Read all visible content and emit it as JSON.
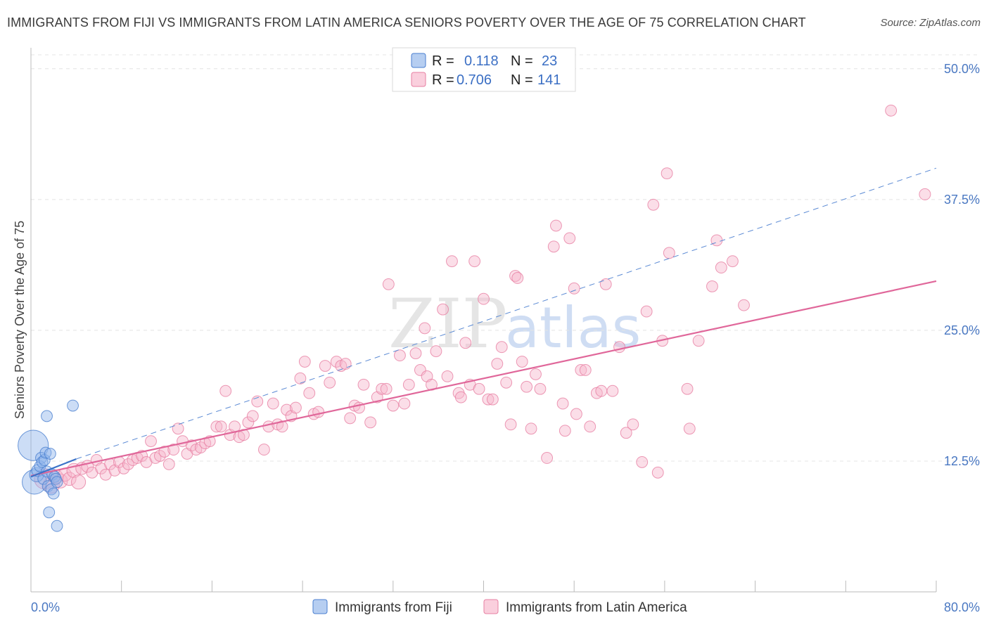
{
  "chart_data": {
    "type": "scatter",
    "title": "IMMIGRANTS FROM FIJI VS IMMIGRANTS FROM LATIN AMERICA SENIORS POVERTY OVER THE AGE OF 75 CORRELATION CHART",
    "source": "Source: ZipAtlas.com",
    "ylabel": "Seniors Poverty Over the Age of 75",
    "xlim": [
      0,
      80
    ],
    "ylim": [
      0,
      52
    ],
    "x_tick_labels": [
      "0.0%",
      "80.0%"
    ],
    "y_ticks": [
      {
        "value": 12.5,
        "label": "12.5%"
      },
      {
        "value": 25.0,
        "label": "25.0%"
      },
      {
        "value": 37.5,
        "label": "37.5%"
      },
      {
        "value": 50.0,
        "label": "50.0%"
      }
    ],
    "watermark": {
      "part1": "ZIP",
      "part2": "atlas"
    },
    "legend": {
      "r_label": "R =",
      "n_label": "N =",
      "entries": [
        {
          "r": "0.118",
          "n": "23"
        },
        {
          "r": "0.706",
          "n": "141"
        }
      ]
    },
    "series": [
      {
        "name": "Immigrants from Fiji",
        "color": "#8fb4ea",
        "stroke": "#4a7fd0",
        "trend": {
          "x": [
            0,
            4
          ],
          "y": [
            11.0,
            12.7
          ],
          "color": "#3a72c8"
        },
        "points": [
          [
            0.2,
            14.0
          ],
          [
            0.3,
            10.5
          ],
          [
            0.5,
            11.2
          ],
          [
            0.6,
            11.6
          ],
          [
            0.8,
            12.0
          ],
          [
            0.9,
            12.8
          ],
          [
            1.0,
            12.4
          ],
          [
            1.1,
            10.8
          ],
          [
            1.2,
            12.6
          ],
          [
            1.3,
            13.3
          ],
          [
            1.4,
            11.5
          ],
          [
            1.5,
            10.1
          ],
          [
            1.6,
            7.6
          ],
          [
            1.7,
            13.2
          ],
          [
            1.8,
            9.8
          ],
          [
            1.9,
            11.2
          ],
          [
            2.0,
            9.4
          ],
          [
            2.1,
            11.0
          ],
          [
            2.2,
            10.8
          ],
          [
            2.3,
            10.5
          ],
          [
            1.4,
            16.8
          ],
          [
            2.3,
            6.3
          ],
          [
            3.7,
            17.8
          ]
        ],
        "sizes": [
          30,
          24,
          14,
          12,
          11,
          11,
          11,
          11,
          11,
          11,
          11,
          11,
          11,
          11,
          11,
          11,
          11,
          11,
          11,
          11,
          11,
          11,
          11
        ]
      },
      {
        "name": "Immigrants from Latin America",
        "color": "#f7b6cb",
        "stroke": "#e77fa2",
        "trend": {
          "x": [
            0,
            80
          ],
          "y": [
            11.1,
            29.7
          ],
          "color": "#e0679a"
        },
        "dashed": {
          "x": [
            4,
            80
          ],
          "y": [
            12.7,
            40.5
          ],
          "color": "#5b8ad4"
        },
        "points": [
          [
            1.2,
            10.8
          ],
          [
            1.8,
            10.2
          ],
          [
            2.2,
            11.0
          ],
          [
            2.6,
            10.6
          ],
          [
            3.0,
            11.2
          ],
          [
            3.4,
            10.8
          ],
          [
            3.8,
            11.6
          ],
          [
            4.2,
            10.5
          ],
          [
            4.5,
            11.8
          ],
          [
            5.0,
            12.0
          ],
          [
            5.4,
            11.4
          ],
          [
            5.8,
            12.6
          ],
          [
            6.2,
            11.8
          ],
          [
            6.6,
            11.2
          ],
          [
            7.0,
            12.2
          ],
          [
            7.4,
            11.6
          ],
          [
            7.8,
            12.4
          ],
          [
            8.2,
            11.8
          ],
          [
            8.6,
            12.2
          ],
          [
            9.0,
            12.6
          ],
          [
            9.4,
            12.8
          ],
          [
            9.8,
            13.0
          ],
          [
            10.2,
            12.4
          ],
          [
            10.6,
            14.4
          ],
          [
            11.0,
            12.8
          ],
          [
            11.4,
            13.0
          ],
          [
            11.8,
            13.4
          ],
          [
            12.2,
            12.2
          ],
          [
            12.6,
            13.6
          ],
          [
            13.0,
            15.6
          ],
          [
            13.4,
            14.4
          ],
          [
            13.8,
            13.2
          ],
          [
            14.2,
            14.0
          ],
          [
            14.6,
            13.6
          ],
          [
            15.0,
            13.8
          ],
          [
            15.4,
            14.2
          ],
          [
            15.8,
            14.4
          ],
          [
            16.4,
            15.8
          ],
          [
            16.8,
            15.8
          ],
          [
            17.2,
            19.2
          ],
          [
            17.6,
            15.0
          ],
          [
            18.0,
            15.8
          ],
          [
            18.4,
            14.8
          ],
          [
            18.8,
            15.0
          ],
          [
            19.2,
            16.2
          ],
          [
            19.6,
            16.8
          ],
          [
            20.0,
            18.2
          ],
          [
            20.6,
            13.6
          ],
          [
            21.0,
            15.8
          ],
          [
            21.4,
            18.0
          ],
          [
            21.8,
            16.0
          ],
          [
            22.2,
            15.8
          ],
          [
            22.6,
            17.4
          ],
          [
            23.0,
            16.8
          ],
          [
            23.4,
            17.6
          ],
          [
            23.8,
            20.4
          ],
          [
            24.2,
            22.0
          ],
          [
            24.6,
            19.0
          ],
          [
            25.0,
            17.0
          ],
          [
            25.4,
            17.2
          ],
          [
            26.0,
            21.6
          ],
          [
            26.4,
            20.0
          ],
          [
            27.0,
            22.0
          ],
          [
            27.4,
            21.6
          ],
          [
            27.8,
            21.8
          ],
          [
            28.2,
            16.6
          ],
          [
            28.6,
            17.8
          ],
          [
            29.0,
            17.6
          ],
          [
            29.4,
            19.8
          ],
          [
            30.0,
            16.2
          ],
          [
            30.6,
            18.6
          ],
          [
            31.0,
            19.4
          ],
          [
            31.4,
            19.4
          ],
          [
            31.6,
            29.4
          ],
          [
            32.0,
            17.8
          ],
          [
            32.6,
            22.6
          ],
          [
            33.0,
            18.0
          ],
          [
            33.4,
            19.8
          ],
          [
            34.0,
            22.8
          ],
          [
            34.4,
            21.2
          ],
          [
            34.8,
            25.2
          ],
          [
            35.0,
            20.6
          ],
          [
            35.4,
            19.8
          ],
          [
            35.8,
            23.0
          ],
          [
            36.4,
            27.0
          ],
          [
            36.8,
            20.6
          ],
          [
            37.2,
            31.6
          ],
          [
            37.8,
            19.0
          ],
          [
            38.0,
            18.6
          ],
          [
            38.4,
            23.8
          ],
          [
            38.8,
            19.8
          ],
          [
            39.2,
            31.6
          ],
          [
            39.6,
            19.4
          ],
          [
            40.0,
            28.0
          ],
          [
            40.4,
            18.4
          ],
          [
            40.8,
            18.4
          ],
          [
            41.2,
            21.8
          ],
          [
            41.6,
            23.4
          ],
          [
            42.0,
            20.0
          ],
          [
            42.4,
            16.0
          ],
          [
            42.8,
            30.2
          ],
          [
            43.0,
            30.0
          ],
          [
            43.4,
            22.0
          ],
          [
            43.8,
            19.6
          ],
          [
            44.2,
            15.6
          ],
          [
            44.6,
            20.8
          ],
          [
            45.0,
            19.4
          ],
          [
            45.6,
            12.8
          ],
          [
            46.2,
            33.0
          ],
          [
            46.4,
            35.0
          ],
          [
            47.0,
            18.0
          ],
          [
            47.2,
            15.4
          ],
          [
            47.6,
            33.8
          ],
          [
            48.0,
            29.0
          ],
          [
            48.2,
            17.0
          ],
          [
            48.6,
            21.2
          ],
          [
            49.0,
            21.2
          ],
          [
            49.4,
            15.8
          ],
          [
            50.0,
            19.0
          ],
          [
            50.4,
            19.2
          ],
          [
            50.8,
            29.4
          ],
          [
            51.4,
            19.2
          ],
          [
            52.0,
            23.4
          ],
          [
            52.6,
            15.2
          ],
          [
            53.2,
            16.0
          ],
          [
            54.0,
            12.4
          ],
          [
            54.4,
            26.8
          ],
          [
            55.0,
            37.0
          ],
          [
            55.4,
            11.4
          ],
          [
            55.8,
            24.0
          ],
          [
            56.2,
            40.0
          ],
          [
            56.4,
            32.4
          ],
          [
            58.0,
            19.4
          ],
          [
            58.2,
            15.6
          ],
          [
            59.0,
            24.0
          ],
          [
            60.2,
            29.2
          ],
          [
            60.6,
            33.6
          ],
          [
            61.0,
            31.0
          ],
          [
            62.0,
            31.6
          ],
          [
            63.0,
            27.4
          ],
          [
            76.0,
            46.0
          ],
          [
            79.0,
            38.0
          ]
        ],
        "sizes": [
          20,
          16,
          14,
          14,
          13,
          13,
          14,
          14,
          12,
          12,
          11,
          11,
          11,
          11,
          11,
          11,
          11,
          11,
          11,
          11,
          11,
          11,
          11,
          11,
          11,
          11,
          11,
          11,
          11,
          11,
          11,
          11,
          11,
          11,
          11,
          11,
          11,
          11,
          11,
          11,
          11,
          11,
          11,
          11,
          11,
          11,
          11,
          11,
          11,
          11,
          11,
          11,
          11,
          11,
          11,
          11,
          11,
          11,
          11,
          11,
          11,
          11,
          11,
          11,
          11,
          11,
          11,
          11,
          11,
          11,
          11,
          11,
          11,
          11,
          11,
          11,
          11,
          11,
          11,
          11,
          11,
          11,
          11,
          11,
          11,
          11,
          11,
          11,
          11,
          11,
          11,
          11,
          11,
          11,
          11,
          11,
          11,
          11,
          11,
          11,
          11,
          11,
          11,
          11,
          11,
          11,
          11,
          11,
          11,
          11,
          11,
          11,
          11,
          11,
          11,
          11,
          11,
          11,
          11,
          11,
          11,
          11,
          11,
          11,
          11,
          11,
          11,
          11,
          11,
          11,
          11,
          11,
          11,
          11,
          11,
          11,
          11,
          11,
          11,
          11,
          11
        ]
      }
    ]
  }
}
